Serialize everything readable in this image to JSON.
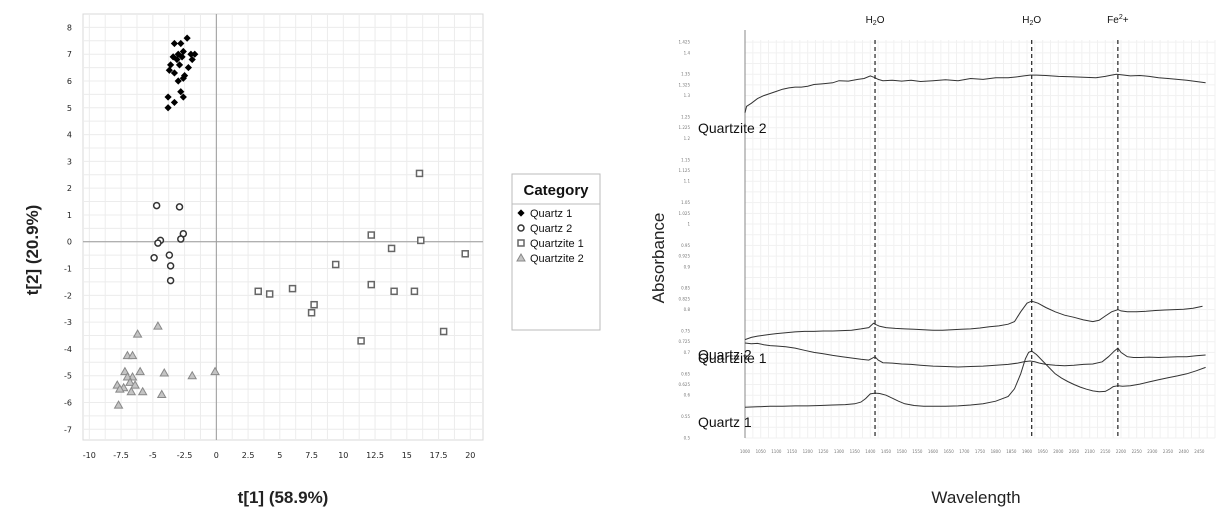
{
  "chart_data": [
    {
      "type": "scatter",
      "title": "",
      "xlabel": "t[1] (58.9%)",
      "ylabel": "t[2] (20.9%)",
      "xlim": [
        -10.5,
        21
      ],
      "ylim": [
        -7.4,
        8.5
      ],
      "x_ticks": [
        -10,
        -7.5,
        -5,
        -2.5,
        0,
        2.5,
        5,
        7.5,
        10,
        12.5,
        15,
        17.5,
        20
      ],
      "x_tick_labels": [
        "-10",
        "-7.5",
        "-5",
        "-2.5",
        "0",
        "2.5",
        "5",
        "7.5",
        "10",
        "12.5",
        "15",
        "17.5",
        "20"
      ],
      "y_ticks": [
        -7,
        -6,
        -5,
        -4,
        -3,
        -2,
        -1,
        0,
        1,
        2,
        3,
        4,
        5,
        6,
        7,
        8
      ],
      "y_tick_labels": [
        "-7",
        "-6",
        "-5",
        "-4",
        "-3",
        "-2",
        "-1",
        "0",
        "1",
        "2",
        "3",
        "4",
        "5",
        "6",
        "7",
        "8"
      ],
      "grid": true,
      "legend_title": "Category",
      "legend_position": "right",
      "series": [
        {
          "name": "Quartz 1",
          "marker": "diamond-filled",
          "color": "#000000",
          "points": [
            [
              -2.3,
              7.6
            ],
            [
              -2.8,
              7.4
            ],
            [
              -3.3,
              7.4
            ],
            [
              -2.6,
              7.1
            ],
            [
              -3.0,
              7.0
            ],
            [
              -3.4,
              6.9
            ],
            [
              -2.0,
              7.0
            ],
            [
              -1.7,
              7.0
            ],
            [
              -3.1,
              6.8
            ],
            [
              -2.7,
              6.9
            ],
            [
              -1.9,
              6.8
            ],
            [
              -3.6,
              6.6
            ],
            [
              -2.9,
              6.6
            ],
            [
              -2.2,
              6.5
            ],
            [
              -3.7,
              6.4
            ],
            [
              -3.3,
              6.3
            ],
            [
              -2.5,
              6.2
            ],
            [
              -2.6,
              6.1
            ],
            [
              -3.0,
              6.0
            ],
            [
              -2.8,
              5.6
            ],
            [
              -3.8,
              5.4
            ],
            [
              -2.6,
              5.4
            ],
            [
              -3.3,
              5.2
            ],
            [
              -3.8,
              5.0
            ]
          ]
        },
        {
          "name": "Quartz 2",
          "marker": "circle-open",
          "color": "#333333",
          "points": [
            [
              -4.7,
              1.35
            ],
            [
              -2.9,
              1.3
            ],
            [
              -2.6,
              0.3
            ],
            [
              -2.8,
              0.1
            ],
            [
              -4.4,
              0.05
            ],
            [
              -4.6,
              -0.05
            ],
            [
              -3.7,
              -0.5
            ],
            [
              -4.9,
              -0.6
            ],
            [
              -3.6,
              -0.9
            ],
            [
              -3.6,
              -1.45
            ]
          ]
        },
        {
          "name": "Quartzite 1",
          "marker": "square-open",
          "color": "#666666",
          "points": [
            [
              16.0,
              2.55
            ],
            [
              12.2,
              0.25
            ],
            [
              16.1,
              0.05
            ],
            [
              13.8,
              -0.25
            ],
            [
              19.6,
              -0.45
            ],
            [
              9.4,
              -0.85
            ],
            [
              12.2,
              -1.6
            ],
            [
              14.0,
              -1.85
            ],
            [
              15.6,
              -1.85
            ],
            [
              3.3,
              -1.85
            ],
            [
              4.2,
              -1.95
            ],
            [
              6.0,
              -1.75
            ],
            [
              7.7,
              -2.35
            ],
            [
              7.5,
              -2.65
            ],
            [
              17.9,
              -3.35
            ],
            [
              11.4,
              -3.7
            ]
          ]
        },
        {
          "name": "Quartzite 2",
          "marker": "triangle-filled",
          "color": "#a0a0a0",
          "points": [
            [
              -4.6,
              -3.15
            ],
            [
              -6.2,
              -3.45
            ],
            [
              -7.0,
              -4.25
            ],
            [
              -6.6,
              -4.25
            ],
            [
              -6.0,
              -4.85
            ],
            [
              -7.2,
              -4.85
            ],
            [
              -4.1,
              -4.9
            ],
            [
              -6.6,
              -5.05
            ],
            [
              -7.0,
              -5.05
            ],
            [
              -6.8,
              -5.25
            ],
            [
              -7.8,
              -5.35
            ],
            [
              -6.4,
              -5.35
            ],
            [
              -7.3,
              -5.45
            ],
            [
              -6.7,
              -5.6
            ],
            [
              -7.6,
              -5.5
            ],
            [
              -5.8,
              -5.6
            ],
            [
              -4.3,
              -5.7
            ],
            [
              -7.7,
              -6.1
            ],
            [
              -1.9,
              -5.0
            ],
            [
              -0.1,
              -4.85
            ]
          ]
        }
      ]
    },
    {
      "type": "line",
      "title": "",
      "xlabel": "Wavelength",
      "ylabel": "Absorbance",
      "xlim": [
        1000,
        2500
      ],
      "ylim": [
        0.5,
        1.43
      ],
      "grid": true,
      "y_tick_labels": [
        "0.5",
        "0.55",
        "0.6",
        "0.625",
        "0.65",
        "0.7",
        "0.725",
        "0.75",
        "0.8",
        "0.825",
        "0.85",
        "0.9",
        "0.925",
        "0.95",
        "1",
        "1.025",
        "1.05",
        "1.1",
        "1.125",
        "1.15",
        "1.2",
        "1.225",
        "1.25",
        "1.3",
        "1.325",
        "1.35",
        "1.4",
        "1.425"
      ],
      "x_tick_labels": [
        "1000",
        "1050",
        "1100",
        "1150",
        "1200",
        "1250",
        "1300",
        "1350",
        "1400",
        "1450",
        "1500",
        "1550",
        "1600",
        "1650",
        "1700",
        "1750",
        "1800",
        "1850",
        "1900",
        "1950",
        "2000",
        "2050",
        "2100",
        "2150",
        "2200",
        "2250",
        "2300",
        "2350",
        "2400",
        "2450"
      ],
      "annotations": [
        {
          "label": "H2O",
          "base": "H",
          "sub": "2",
          "rest": "O",
          "x": 1415
        },
        {
          "label": "H2O",
          "base": "H",
          "sub": "2",
          "rest": "O",
          "x": 1915
        },
        {
          "label": "Fe2+",
          "base": "Fe",
          "sup": "2",
          "rest": "+",
          "x": 2190
        }
      ],
      "series": [
        {
          "name": "Quartzite 2",
          "x": [
            1000,
            1005,
            1020,
            1040,
            1060,
            1080,
            1100,
            1120,
            1140,
            1160,
            1180,
            1200,
            1220,
            1250,
            1280,
            1300,
            1330,
            1360,
            1380,
            1400,
            1415,
            1425,
            1440,
            1470,
            1500,
            1530,
            1560,
            1600,
            1640,
            1680,
            1720,
            1760,
            1800,
            1840,
            1870,
            1890,
            1910,
            1930,
            1960,
            2000,
            2040,
            2080,
            2120,
            2150,
            2170,
            2185,
            2200,
            2230,
            2260,
            2290,
            2320,
            2350,
            2380,
            2410,
            2440,
            2470
          ],
          "y": [
            1.26,
            1.275,
            1.282,
            1.293,
            1.3,
            1.305,
            1.31,
            1.315,
            1.318,
            1.32,
            1.32,
            1.322,
            1.326,
            1.328,
            1.33,
            1.335,
            1.334,
            1.338,
            1.34,
            1.346,
            1.342,
            1.338,
            1.335,
            1.336,
            1.334,
            1.336,
            1.333,
            1.335,
            1.337,
            1.335,
            1.34,
            1.338,
            1.342,
            1.342,
            1.344,
            1.346,
            1.348,
            1.348,
            1.347,
            1.345,
            1.344,
            1.343,
            1.342,
            1.345,
            1.348,
            1.35,
            1.349,
            1.346,
            1.347,
            1.345,
            1.342,
            1.34,
            1.338,
            1.336,
            1.333,
            1.33
          ]
        },
        {
          "name": "Quartz 2",
          "x": [
            1000,
            1020,
            1040,
            1060,
            1080,
            1100,
            1130,
            1160,
            1190,
            1220,
            1250,
            1280,
            1310,
            1340,
            1370,
            1395,
            1410,
            1415,
            1430,
            1450,
            1480,
            1510,
            1540,
            1570,
            1600,
            1630,
            1660,
            1690,
            1720,
            1750,
            1780,
            1810,
            1840,
            1860,
            1880,
            1900,
            1915,
            1935,
            1960,
            1990,
            2020,
            2050,
            2080,
            2110,
            2130,
            2150,
            2170,
            2190,
            2200,
            2220,
            2250,
            2280,
            2310,
            2340,
            2370,
            2400,
            2430,
            2460
          ],
          "y": [
            0.73,
            0.735,
            0.738,
            0.74,
            0.742,
            0.744,
            0.746,
            0.748,
            0.749,
            0.749,
            0.75,
            0.75,
            0.751,
            0.752,
            0.755,
            0.758,
            0.768,
            0.766,
            0.761,
            0.758,
            0.756,
            0.755,
            0.754,
            0.753,
            0.752,
            0.752,
            0.753,
            0.754,
            0.755,
            0.757,
            0.76,
            0.762,
            0.766,
            0.772,
            0.795,
            0.815,
            0.82,
            0.815,
            0.805,
            0.795,
            0.787,
            0.782,
            0.776,
            0.772,
            0.775,
            0.785,
            0.795,
            0.8,
            0.797,
            0.795,
            0.795,
            0.796,
            0.798,
            0.799,
            0.8,
            0.801,
            0.803,
            0.808
          ]
        },
        {
          "name": "Quartzite 1",
          "x": [
            1000,
            1020,
            1040,
            1060,
            1080,
            1100,
            1130,
            1160,
            1190,
            1220,
            1250,
            1280,
            1310,
            1340,
            1370,
            1395,
            1415,
            1425,
            1440,
            1470,
            1500,
            1530,
            1560,
            1600,
            1640,
            1680,
            1720,
            1760,
            1800,
            1840,
            1870,
            1890,
            1910,
            1925,
            1940,
            1960,
            1990,
            2020,
            2050,
            2080,
            2110,
            2140,
            2160,
            2180,
            2190,
            2200,
            2220,
            2240,
            2260,
            2290,
            2320,
            2350,
            2380,
            2410,
            2440,
            2470
          ],
          "y": [
            0.722,
            0.72,
            0.721,
            0.718,
            0.716,
            0.715,
            0.713,
            0.71,
            0.705,
            0.7,
            0.697,
            0.693,
            0.69,
            0.687,
            0.684,
            0.682,
            0.69,
            0.682,
            0.676,
            0.675,
            0.673,
            0.672,
            0.67,
            0.668,
            0.667,
            0.666,
            0.667,
            0.668,
            0.67,
            0.672,
            0.675,
            0.678,
            0.68,
            0.678,
            0.675,
            0.672,
            0.67,
            0.669,
            0.67,
            0.672,
            0.673,
            0.678,
            0.69,
            0.704,
            0.71,
            0.7,
            0.69,
            0.688,
            0.688,
            0.689,
            0.688,
            0.689,
            0.69,
            0.69,
            0.692,
            0.694
          ]
        },
        {
          "name": "Quartz 1",
          "x": [
            1000,
            1040,
            1080,
            1120,
            1160,
            1200,
            1240,
            1280,
            1320,
            1350,
            1370,
            1385,
            1400,
            1415,
            1430,
            1450,
            1470,
            1490,
            1510,
            1540,
            1570,
            1600,
            1640,
            1680,
            1720,
            1760,
            1800,
            1840,
            1860,
            1880,
            1895,
            1905,
            1915,
            1930,
            1950,
            1970,
            1990,
            2010,
            2030,
            2050,
            2070,
            2090,
            2110,
            2130,
            2150,
            2165,
            2175,
            2190,
            2205,
            2230,
            2260,
            2290,
            2320,
            2350,
            2380,
            2410,
            2440,
            2470
          ],
          "y": [
            0.572,
            0.573,
            0.574,
            0.574,
            0.575,
            0.575,
            0.576,
            0.577,
            0.578,
            0.58,
            0.584,
            0.592,
            0.603,
            0.605,
            0.604,
            0.6,
            0.593,
            0.586,
            0.58,
            0.576,
            0.574,
            0.574,
            0.574,
            0.575,
            0.577,
            0.58,
            0.586,
            0.597,
            0.615,
            0.65,
            0.685,
            0.7,
            0.703,
            0.695,
            0.68,
            0.665,
            0.65,
            0.64,
            0.632,
            0.625,
            0.619,
            0.614,
            0.61,
            0.608,
            0.609,
            0.615,
            0.62,
            0.622,
            0.621,
            0.622,
            0.626,
            0.631,
            0.636,
            0.641,
            0.645,
            0.65,
            0.657,
            0.665
          ]
        }
      ]
    }
  ]
}
